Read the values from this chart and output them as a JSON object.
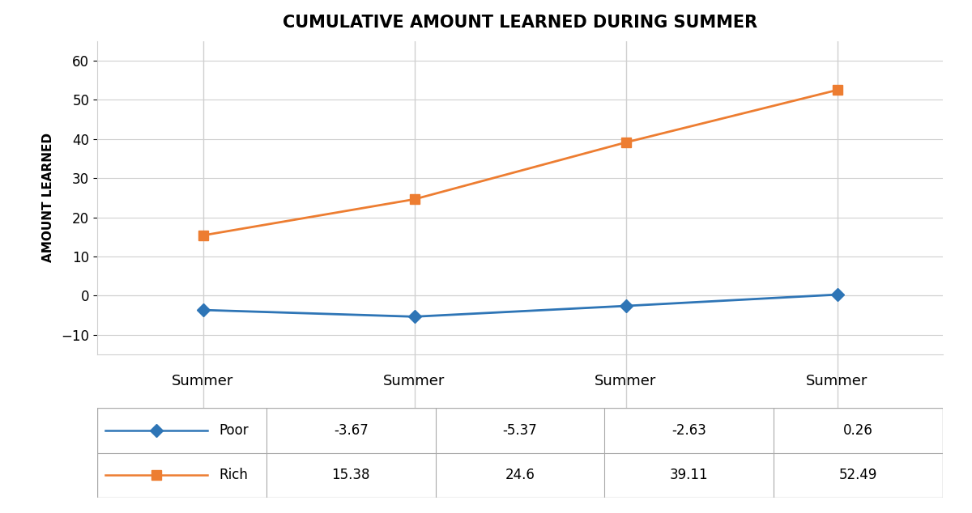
{
  "title": "CUMULATIVE AMOUNT LEARNED DURING SUMMER",
  "ylabel": "AMOUNT LEARNED",
  "x_labels": [
    "Summer",
    "Summer",
    "Summer",
    "Summer"
  ],
  "x_positions": [
    1,
    2,
    3,
    4
  ],
  "poor_values": [
    -3.67,
    -5.37,
    -2.63,
    0.26
  ],
  "rich_values": [
    15.38,
    24.6,
    39.11,
    52.49
  ],
  "poor_color": "#2E75B6",
  "rich_color": "#ED7D31",
  "ylim": [
    -15,
    65
  ],
  "yticks": [
    -10,
    0,
    10,
    20,
    30,
    40,
    50,
    60
  ],
  "title_fontsize": 15,
  "axis_label_fontsize": 11,
  "tick_fontsize": 12,
  "summer_fontsize": 13,
  "table_fontsize": 12,
  "table_poor_label": "Poor",
  "table_rich_label": "Rich",
  "background_color": "#FFFFFF",
  "grid_color": "#D0D0D0",
  "table_rows": [
    [
      "-3.67",
      "-5.37",
      "-2.63",
      "0.26"
    ],
    [
      "15.38",
      "24.6",
      "39.11",
      "52.49"
    ]
  ],
  "row_labels": [
    "Poor",
    "Rich"
  ],
  "row_colors": [
    "#2E75B6",
    "#ED7D31"
  ],
  "row_markers": [
    "D",
    "s"
  ]
}
